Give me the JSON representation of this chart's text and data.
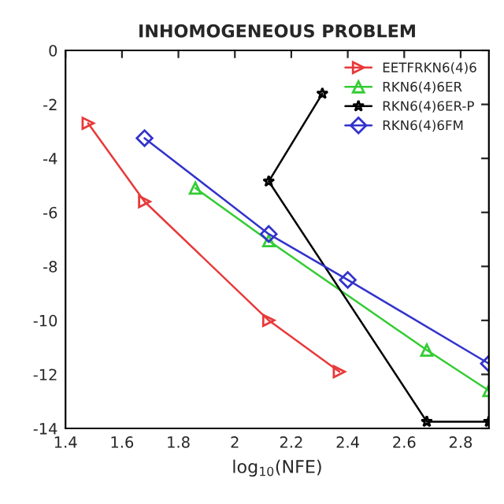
{
  "chart_data": {
    "type": "line",
    "title": "INHOMOGENEOUS PROBLEM",
    "xlabel": "log$_{10}$(NFE)",
    "xlim": [
      1.4,
      2.9
    ],
    "xticks": [
      1.4,
      1.6,
      1.8,
      2,
      2.2,
      2.4,
      2.6,
      2.8
    ],
    "ylim": [
      -14,
      0
    ],
    "yticks": [
      -14,
      -12,
      -10,
      -8,
      -6,
      -4,
      -2,
      0
    ],
    "grid": false,
    "legend": "top right",
    "series": [
      {
        "name": "EETFRKN6(4)6",
        "color": "#e8393a",
        "marker": "triangle",
        "x": [
          1.48,
          1.68,
          2.12,
          2.37
        ],
        "values": [
          -2.7,
          -5.6,
          -10,
          -11.9
        ]
      },
      {
        "name": "RKN6(4)6ER",
        "color": "#33cc33",
        "marker": "triangle",
        "x": [
          1.86,
          2.12,
          2.68,
          2.9
        ],
        "values": [
          -5.1,
          -7.05,
          -11.1,
          -12.6
        ]
      },
      {
        "name": "RKN6(4)6ER-P",
        "color": "#000000",
        "marker": "star",
        "x": [
          2.31,
          2.12,
          2.68,
          2.9
        ],
        "values": [
          -1.6,
          -4.85,
          -13.75,
          -13.75
        ]
      },
      {
        "name": "RKN6(4)6FM",
        "color": "#3333cc",
        "marker": "diamond",
        "x": [
          1.68,
          2.12,
          2.4,
          2.9
        ],
        "values": [
          -3.25,
          -6.8,
          -8.5,
          -11.6
        ]
      }
    ]
  }
}
